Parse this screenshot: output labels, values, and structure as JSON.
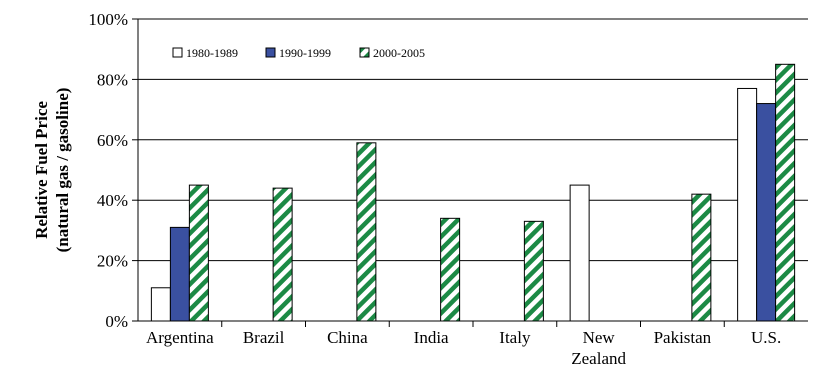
{
  "chart_data": {
    "type": "bar",
    "title": "",
    "ylabel_lines": [
      "Relative Fuel Price",
      "(natural gas / gasoline)"
    ],
    "xlabel": "",
    "categories": [
      [
        "Argentina"
      ],
      [
        "Brazil"
      ],
      [
        "China"
      ],
      [
        "India"
      ],
      [
        "Italy"
      ],
      [
        "New",
        "Zealand"
      ],
      [
        "Pakistan"
      ],
      [
        "U.S."
      ]
    ],
    "series": [
      {
        "name": "1980-1989",
        "fill": "white",
        "values": [
          11,
          null,
          null,
          null,
          null,
          45,
          null,
          77
        ]
      },
      {
        "name": "1990-1999",
        "fill": "solid",
        "values": [
          31,
          null,
          null,
          null,
          null,
          null,
          null,
          72
        ]
      },
      {
        "name": "2000-2005",
        "fill": "hatch",
        "values": [
          45,
          44,
          59,
          34,
          33,
          null,
          42,
          85
        ]
      }
    ],
    "ylim": [
      0,
      100
    ],
    "yticks": [
      "0%",
      "20%",
      "40%",
      "60%",
      "80%",
      "100%"
    ],
    "grid": true,
    "legend_position": "top-left",
    "colors": {
      "solid_fill": "#3a50a0",
      "hatch_stripe": "#1c8a45",
      "outline": "#000000",
      "grid": "#000000"
    }
  }
}
